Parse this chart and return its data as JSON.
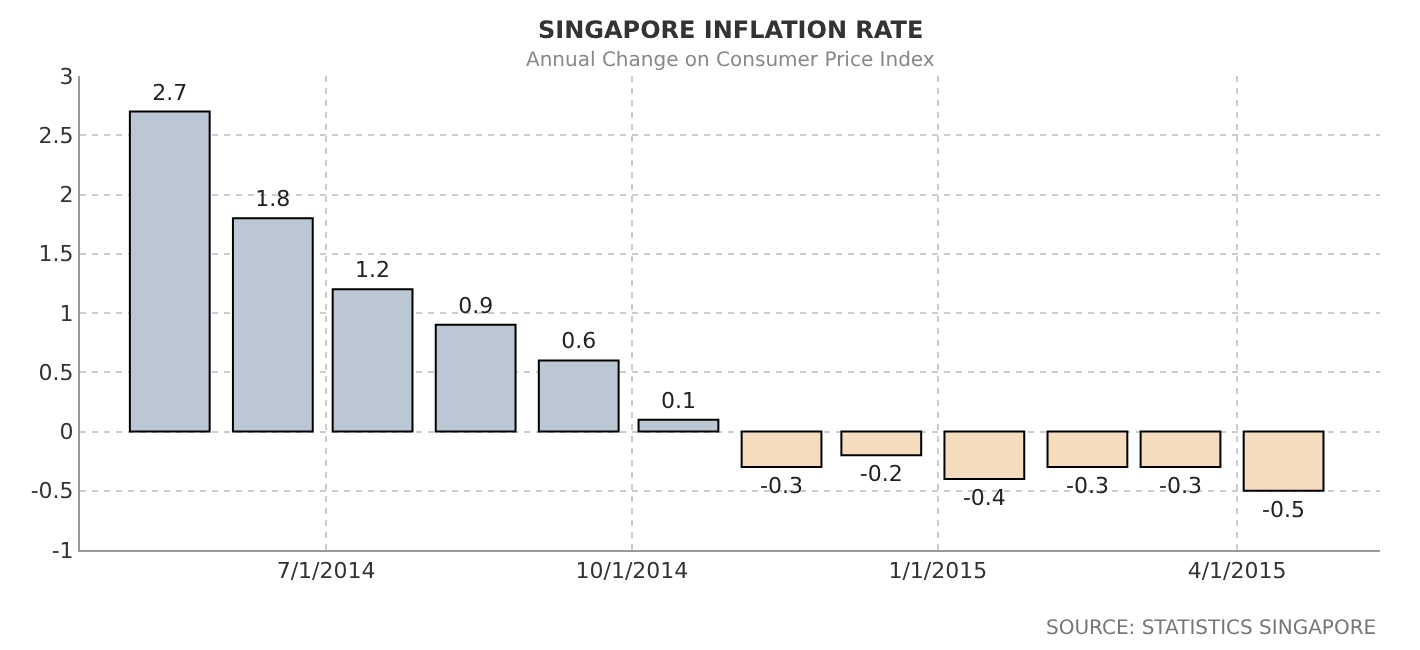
{
  "chart_data": {
    "type": "bar",
    "title": "SINGAPORE INFLATION RATE",
    "subtitle": "Annual Change on Consumer Price Index",
    "x": [
      "2014-05-15",
      "2014-06-15",
      "2014-07-15",
      "2014-08-15",
      "2014-09-15",
      "2014-10-15",
      "2014-11-15",
      "2014-12-15",
      "2015-01-15",
      "2015-02-15",
      "2015-03-15",
      "2015-04-15"
    ],
    "values": [
      2.7,
      1.8,
      1.2,
      0.9,
      0.6,
      0.1,
      -0.3,
      -0.2,
      -0.4,
      -0.3,
      -0.3,
      -0.5
    ],
    "colors": [
      "#bcc7d6",
      "#bcc7d6",
      "#bcc7d6",
      "#bcc7d6",
      "#bcc7d6",
      "#bcc7d6",
      "#f6dcbf",
      "#f6dcbf",
      "#f6dcbf",
      "#f6dcbf",
      "#f6dcbf",
      "#f6dcbf"
    ],
    "xlim": [
      "2014-04-18",
      "2015-05-14"
    ],
    "xticks": [
      {
        "value": "2014-07-01",
        "label": "7/1/2014"
      },
      {
        "value": "2014-10-01",
        "label": "10/1/2014"
      },
      {
        "value": "2015-01-01",
        "label": "1/1/2015"
      },
      {
        "value": "2015-04-01",
        "label": "4/1/2015"
      }
    ],
    "ylim": [
      -1,
      3
    ],
    "yticks": [
      -1,
      -0.5,
      0,
      0.5,
      1,
      1.5,
      2,
      2.5,
      3
    ],
    "grid": true,
    "data_labels": true,
    "annotations": [
      "SOURCE: STATISTICS SINGAPORE"
    ]
  }
}
